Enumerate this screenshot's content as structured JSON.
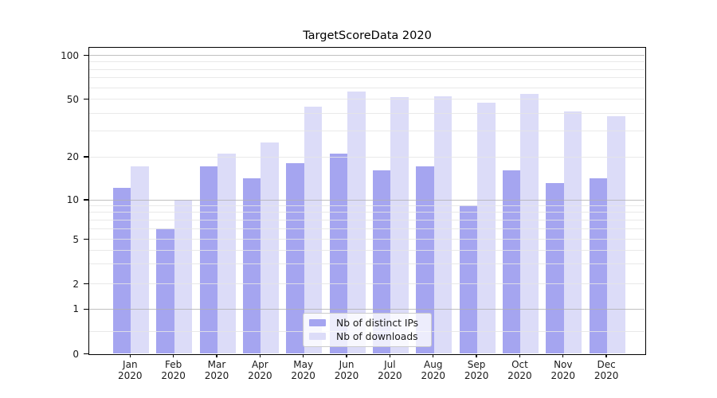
{
  "title": "TargetScoreData 2020",
  "chart_data": {
    "type": "bar",
    "title": "TargetScoreData 2020",
    "categories": [
      {
        "month": "Jan",
        "year": "2020"
      },
      {
        "month": "Feb",
        "year": "2020"
      },
      {
        "month": "Mar",
        "year": "2020"
      },
      {
        "month": "Apr",
        "year": "2020"
      },
      {
        "month": "May",
        "year": "2020"
      },
      {
        "month": "Jun",
        "year": "2020"
      },
      {
        "month": "Jul",
        "year": "2020"
      },
      {
        "month": "Aug",
        "year": "2020"
      },
      {
        "month": "Sep",
        "year": "2020"
      },
      {
        "month": "Oct",
        "year": "2020"
      },
      {
        "month": "Nov",
        "year": "2020"
      },
      {
        "month": "Dec",
        "year": "2020"
      }
    ],
    "series": [
      {
        "name": "Nb of distinct IPs",
        "color": "#a5a5f0",
        "values": [
          12,
          6,
          17,
          14,
          18,
          21,
          16,
          17,
          9,
          16,
          13,
          14
        ]
      },
      {
        "name": "Nb of downloads",
        "color": "#dcdcf8",
        "values": [
          17,
          10,
          21,
          25,
          44,
          56,
          51,
          52,
          47,
          54,
          41,
          38
        ]
      }
    ],
    "xlabel": "",
    "ylabel": "",
    "yscale": "symlog",
    "ylim": [
      0,
      130
    ],
    "y_tick_values": [
      0,
      1,
      2,
      5,
      10,
      20,
      50,
      100
    ],
    "y_tick_labels": [
      "0",
      "1",
      "2",
      "5",
      "10",
      "20",
      "50",
      "100"
    ],
    "y_major_gridlines": [
      1,
      10,
      100
    ],
    "y_minor_gridlines": [
      0.5,
      2,
      3,
      4,
      5,
      6,
      7,
      8,
      9,
      20,
      30,
      40,
      50,
      60,
      70,
      80,
      90
    ],
    "grid": "on",
    "legend_position": "lower center",
    "legend_entries": [
      "Nb of distinct IPs",
      "Nb of downloads"
    ]
  }
}
